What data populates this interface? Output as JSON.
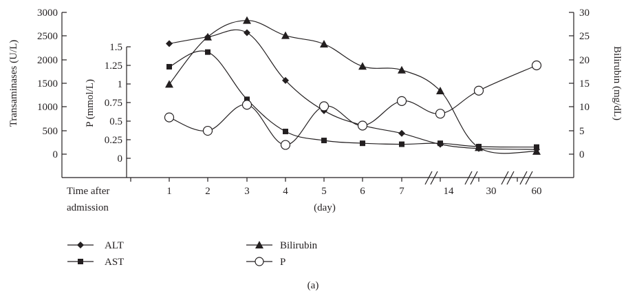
{
  "chart_data": {
    "type": "line",
    "categories": [
      "1",
      "2",
      "3",
      "4",
      "5",
      "6",
      "7",
      "14",
      "30",
      "60"
    ],
    "x_title_lines": [
      "Time after",
      "admission"
    ],
    "x_unit": "(day)",
    "left_axis": {
      "label": "Transaminases (U/L)",
      "ticks": [
        "3000",
        "2500",
        "2000",
        "1500",
        "1000",
        "500",
        "0"
      ],
      "ylim": [
        0,
        3000
      ]
    },
    "inner_axis": {
      "label": "P (mmol/L)",
      "ticks": [
        "1.5",
        "1.25",
        "1",
        "0.75",
        "0.5",
        "0.25",
        "0"
      ],
      "ylim": [
        0,
        1.5
      ]
    },
    "right_axis": {
      "label": "Bilirubin (mg/dL)",
      "ticks": [
        "30",
        "25",
        "20",
        "15",
        "10",
        "5",
        "0"
      ],
      "ylim": [
        0,
        30
      ]
    },
    "series": [
      {
        "name": "ALT",
        "axis": "left",
        "marker": "diamond",
        "values": [
          2340,
          2480,
          2570,
          1560,
          920,
          610,
          440,
          210,
          120,
          100
        ]
      },
      {
        "name": "AST",
        "axis": "left",
        "marker": "square",
        "values": [
          1850,
          2160,
          1160,
          480,
          290,
          230,
          210,
          230,
          160,
          150
        ]
      },
      {
        "name": "Bilirubin",
        "axis": "right",
        "marker": "triangle",
        "values": [
          14.8,
          24.8,
          28.3,
          25.1,
          23.3,
          18.6,
          17.8,
          13.4,
          1.4,
          0.6
        ]
      },
      {
        "name": "P",
        "axis": "inner",
        "marker": "circle",
        "values": [
          0.55,
          0.37,
          0.72,
          0.18,
          0.7,
          0.44,
          0.77,
          0.6,
          0.91,
          1.25
        ]
      }
    ],
    "legend_placement": "bottom-left",
    "grid": false
  },
  "caption": "(a)"
}
